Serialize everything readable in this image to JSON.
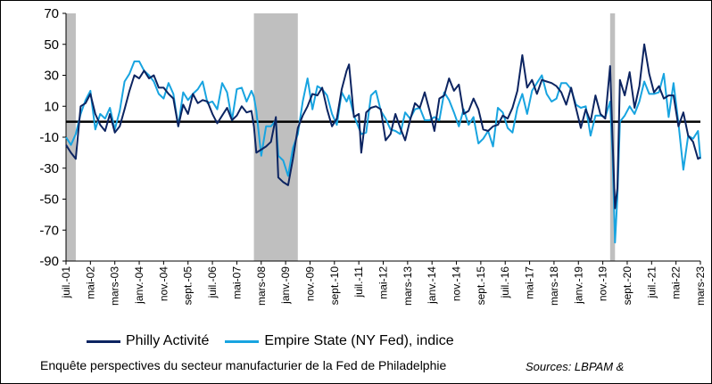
{
  "chart_data": {
    "type": "line",
    "subtitle": "Enquête perspectives du  secteur manufacturier de la Fed de Philadelphie",
    "source": "Sources: LBPAM &",
    "ylim": [
      -90,
      70
    ],
    "yticks": [
      70,
      50,
      30,
      10,
      -10,
      -30,
      -50,
      -70,
      -90
    ],
    "xlim": [
      "2001-07",
      "2023-03"
    ],
    "xtick_labels": [
      "juil.-01",
      "mai-02",
      "mars-03",
      "janv.-04",
      "nov.-04",
      "sept.-05",
      "juil.-06",
      "mai-07",
      "mars-08",
      "janv.-09",
      "nov.-09",
      "sept.-10",
      "juil.-11",
      "mai-12",
      "mars-13",
      "janv.-14",
      "nov.-14",
      "sept.-15",
      "juil.-16",
      "mai-17",
      "mars-18",
      "janv.-19",
      "nov.-19",
      "sept.-20",
      "juil.-21",
      "mai-22",
      "mars-23"
    ],
    "zero_line": 0,
    "recession_bands": [
      [
        "2001-07",
        "2001-11"
      ],
      [
        "2007-12",
        "2009-06"
      ],
      [
        "2020-02",
        "2020-04"
      ]
    ],
    "colors": {
      "philly": "#0c2461",
      "empire": "#18a4e0",
      "recession": "#bfbfbf"
    },
    "series": [
      {
        "name": "Philly Activité",
        "color": "#0c2461",
        "points": [
          [
            "2001-07",
            -15
          ],
          [
            "2001-09",
            -20
          ],
          [
            "2001-11",
            -24
          ],
          [
            "2002-01",
            10
          ],
          [
            "2002-03",
            12
          ],
          [
            "2002-05",
            18
          ],
          [
            "2002-07",
            5
          ],
          [
            "2002-09",
            -2
          ],
          [
            "2002-11",
            -6
          ],
          [
            "2003-01",
            5
          ],
          [
            "2003-03",
            -7
          ],
          [
            "2003-05",
            -3
          ],
          [
            "2003-07",
            8
          ],
          [
            "2003-09",
            20
          ],
          [
            "2003-11",
            30
          ],
          [
            "2004-01",
            28
          ],
          [
            "2004-03",
            33
          ],
          [
            "2004-05",
            28
          ],
          [
            "2004-07",
            30
          ],
          [
            "2004-09",
            22
          ],
          [
            "2004-11",
            22
          ],
          [
            "2005-01",
            18
          ],
          [
            "2005-03",
            15
          ],
          [
            "2005-05",
            -3
          ],
          [
            "2005-07",
            11
          ],
          [
            "2005-09",
            5
          ],
          [
            "2005-11",
            18
          ],
          [
            "2006-01",
            12
          ],
          [
            "2006-03",
            14
          ],
          [
            "2006-05",
            13
          ],
          [
            "2006-07",
            5
          ],
          [
            "2006-09",
            -1
          ],
          [
            "2006-11",
            4
          ],
          [
            "2007-01",
            9
          ],
          [
            "2007-03",
            1
          ],
          [
            "2007-05",
            4
          ],
          [
            "2007-07",
            10
          ],
          [
            "2007-09",
            6
          ],
          [
            "2007-11",
            7
          ],
          [
            "2007-12",
            -3
          ],
          [
            "2008-01",
            -20
          ],
          [
            "2008-03",
            -18
          ],
          [
            "2008-05",
            -16
          ],
          [
            "2008-07",
            -13
          ],
          [
            "2008-09",
            3
          ],
          [
            "2008-10",
            -36
          ],
          [
            "2008-12",
            -39
          ],
          [
            "2009-02",
            -41
          ],
          [
            "2009-04",
            -24
          ],
          [
            "2009-06",
            -4
          ],
          [
            "2009-08",
            4
          ],
          [
            "2009-10",
            10
          ],
          [
            "2009-12",
            18
          ],
          [
            "2010-02",
            17
          ],
          [
            "2010-04",
            22
          ],
          [
            "2010-06",
            8
          ],
          [
            "2010-08",
            -3
          ],
          [
            "2010-10",
            2
          ],
          [
            "2010-12",
            21
          ],
          [
            "2011-02",
            33
          ],
          [
            "2011-03",
            37
          ],
          [
            "2011-05",
            3
          ],
          [
            "2011-07",
            5
          ],
          [
            "2011-08",
            -20
          ],
          [
            "2011-10",
            6
          ],
          [
            "2011-12",
            9
          ],
          [
            "2012-02",
            10
          ],
          [
            "2012-04",
            8
          ],
          [
            "2012-06",
            -12
          ],
          [
            "2012-08",
            -8
          ],
          [
            "2012-10",
            5
          ],
          [
            "2012-12",
            -4
          ],
          [
            "2013-02",
            -12
          ],
          [
            "2013-04",
            1
          ],
          [
            "2013-06",
            12
          ],
          [
            "2013-08",
            9
          ],
          [
            "2013-10",
            19
          ],
          [
            "2013-12",
            7
          ],
          [
            "2014-02",
            -6
          ],
          [
            "2014-04",
            15
          ],
          [
            "2014-06",
            17
          ],
          [
            "2014-08",
            28
          ],
          [
            "2014-10",
            20
          ],
          [
            "2014-12",
            24
          ],
          [
            "2015-02",
            5
          ],
          [
            "2015-04",
            7
          ],
          [
            "2015-06",
            15
          ],
          [
            "2015-08",
            8
          ],
          [
            "2015-10",
            -5
          ],
          [
            "2015-12",
            -6
          ],
          [
            "2016-02",
            -3
          ],
          [
            "2016-04",
            -2
          ],
          [
            "2016-06",
            4
          ],
          [
            "2016-08",
            2
          ],
          [
            "2016-10",
            9
          ],
          [
            "2016-12",
            20
          ],
          [
            "2017-02",
            43
          ],
          [
            "2017-04",
            22
          ],
          [
            "2017-06",
            27
          ],
          [
            "2017-08",
            18
          ],
          [
            "2017-10",
            27
          ],
          [
            "2017-12",
            26
          ],
          [
            "2018-02",
            25
          ],
          [
            "2018-04",
            23
          ],
          [
            "2018-06",
            19
          ],
          [
            "2018-08",
            11
          ],
          [
            "2018-10",
            22
          ],
          [
            "2018-12",
            9
          ],
          [
            "2019-02",
            -4
          ],
          [
            "2019-04",
            8
          ],
          [
            "2019-06",
            0
          ],
          [
            "2019-08",
            17
          ],
          [
            "2019-10",
            5
          ],
          [
            "2019-12",
            2
          ],
          [
            "2020-02",
            36
          ],
          [
            "2020-03",
            -12
          ],
          [
            "2020-04",
            -56
          ],
          [
            "2020-05",
            -43
          ],
          [
            "2020-06",
            27
          ],
          [
            "2020-08",
            17
          ],
          [
            "2020-10",
            32
          ],
          [
            "2020-12",
            9
          ],
          [
            "2021-02",
            23
          ],
          [
            "2021-04",
            50
          ],
          [
            "2021-06",
            31
          ],
          [
            "2021-08",
            19
          ],
          [
            "2021-10",
            23
          ],
          [
            "2021-12",
            15
          ],
          [
            "2022-02",
            17
          ],
          [
            "2022-04",
            17
          ],
          [
            "2022-06",
            -3
          ],
          [
            "2022-08",
            6
          ],
          [
            "2022-10",
            -9
          ],
          [
            "2022-12",
            -13
          ],
          [
            "2023-02",
            -24
          ],
          [
            "2023-03",
            -23
          ]
        ]
      },
      {
        "name": "Empire State (NY Fed), indice",
        "color": "#18a4e0",
        "points": [
          [
            "2001-07",
            -10
          ],
          [
            "2001-09",
            -15
          ],
          [
            "2001-11",
            -8
          ],
          [
            "2002-01",
            5
          ],
          [
            "2002-03",
            14
          ],
          [
            "2002-05",
            20
          ],
          [
            "2002-07",
            -5
          ],
          [
            "2002-09",
            5
          ],
          [
            "2002-11",
            2
          ],
          [
            "2003-01",
            9
          ],
          [
            "2003-03",
            -5
          ],
          [
            "2003-05",
            7
          ],
          [
            "2003-07",
            26
          ],
          [
            "2003-09",
            31
          ],
          [
            "2003-11",
            39
          ],
          [
            "2004-01",
            39
          ],
          [
            "2004-03",
            33
          ],
          [
            "2004-05",
            30
          ],
          [
            "2004-07",
            26
          ],
          [
            "2004-09",
            18
          ],
          [
            "2004-11",
            15
          ],
          [
            "2005-01",
            25
          ],
          [
            "2005-03",
            18
          ],
          [
            "2005-05",
            -3
          ],
          [
            "2005-07",
            19
          ],
          [
            "2005-09",
            14
          ],
          [
            "2005-11",
            18
          ],
          [
            "2006-01",
            21
          ],
          [
            "2006-03",
            26
          ],
          [
            "2006-05",
            12
          ],
          [
            "2006-07",
            13
          ],
          [
            "2006-09",
            8
          ],
          [
            "2006-11",
            25
          ],
          [
            "2007-01",
            19
          ],
          [
            "2007-03",
            1
          ],
          [
            "2007-05",
            21
          ],
          [
            "2007-07",
            22
          ],
          [
            "2007-09",
            13
          ],
          [
            "2007-11",
            20
          ],
          [
            "2007-12",
            16
          ],
          [
            "2008-01",
            7
          ],
          [
            "2008-03",
            -22
          ],
          [
            "2008-05",
            -3
          ],
          [
            "2008-07",
            -3
          ],
          [
            "2008-09",
            1
          ],
          [
            "2008-10",
            -22
          ],
          [
            "2008-12",
            -25
          ],
          [
            "2009-02",
            -35
          ],
          [
            "2009-04",
            -17
          ],
          [
            "2009-06",
            -8
          ],
          [
            "2009-08",
            13
          ],
          [
            "2009-10",
            28
          ],
          [
            "2009-12",
            8
          ],
          [
            "2010-02",
            23
          ],
          [
            "2010-04",
            21
          ],
          [
            "2010-06",
            17
          ],
          [
            "2010-08",
            5
          ],
          [
            "2010-10",
            -2
          ],
          [
            "2010-12",
            19
          ],
          [
            "2011-02",
            13
          ],
          [
            "2011-03",
            17
          ],
          [
            "2011-05",
            4
          ],
          [
            "2011-07",
            -4
          ],
          [
            "2011-08",
            -8
          ],
          [
            "2011-10",
            -7
          ],
          [
            "2011-12",
            17
          ],
          [
            "2012-02",
            20
          ],
          [
            "2012-04",
            7
          ],
          [
            "2012-06",
            2
          ],
          [
            "2012-08",
            -5
          ],
          [
            "2012-10",
            -6
          ],
          [
            "2012-12",
            -8
          ],
          [
            "2013-02",
            6
          ],
          [
            "2013-04",
            2
          ],
          [
            "2013-06",
            8
          ],
          [
            "2013-08",
            9
          ],
          [
            "2013-10",
            1
          ],
          [
            "2013-12",
            1
          ],
          [
            "2014-02",
            3
          ],
          [
            "2014-04",
            1
          ],
          [
            "2014-06",
            19
          ],
          [
            "2014-08",
            14
          ],
          [
            "2014-10",
            6
          ],
          [
            "2014-12",
            -3
          ],
          [
            "2015-02",
            8
          ],
          [
            "2015-04",
            -2
          ],
          [
            "2015-06",
            3
          ],
          [
            "2015-08",
            -14
          ],
          [
            "2015-10",
            -11
          ],
          [
            "2015-12",
            -6
          ],
          [
            "2016-02",
            -16
          ],
          [
            "2016-04",
            9
          ],
          [
            "2016-06",
            6
          ],
          [
            "2016-08",
            -4
          ],
          [
            "2016-10",
            -7
          ],
          [
            "2016-12",
            9
          ],
          [
            "2017-02",
            18
          ],
          [
            "2017-04",
            5
          ],
          [
            "2017-06",
            20
          ],
          [
            "2017-08",
            25
          ],
          [
            "2017-10",
            30
          ],
          [
            "2017-12",
            18
          ],
          [
            "2018-02",
            13
          ],
          [
            "2018-04",
            15
          ],
          [
            "2018-06",
            25
          ],
          [
            "2018-08",
            25
          ],
          [
            "2018-10",
            21
          ],
          [
            "2018-12",
            11
          ],
          [
            "2019-02",
            9
          ],
          [
            "2019-04",
            10
          ],
          [
            "2019-06",
            -9
          ],
          [
            "2019-08",
            4
          ],
          [
            "2019-10",
            4
          ],
          [
            "2019-12",
            3
          ],
          [
            "2020-02",
            13
          ],
          [
            "2020-03",
            -21
          ],
          [
            "2020-04",
            -78
          ],
          [
            "2020-05",
            -48
          ],
          [
            "2020-06",
            0
          ],
          [
            "2020-08",
            4
          ],
          [
            "2020-10",
            10
          ],
          [
            "2020-12",
            5
          ],
          [
            "2021-02",
            13
          ],
          [
            "2021-04",
            26
          ],
          [
            "2021-06",
            18
          ],
          [
            "2021-08",
            18
          ],
          [
            "2021-10",
            19
          ],
          [
            "2021-12",
            31
          ],
          [
            "2022-02",
            3
          ],
          [
            "2022-04",
            25
          ],
          [
            "2022-06",
            -1
          ],
          [
            "2022-08",
            -31
          ],
          [
            "2022-10",
            -9
          ],
          [
            "2022-12",
            -11
          ],
          [
            "2023-02",
            -6
          ],
          [
            "2023-03",
            -24
          ]
        ]
      }
    ]
  }
}
